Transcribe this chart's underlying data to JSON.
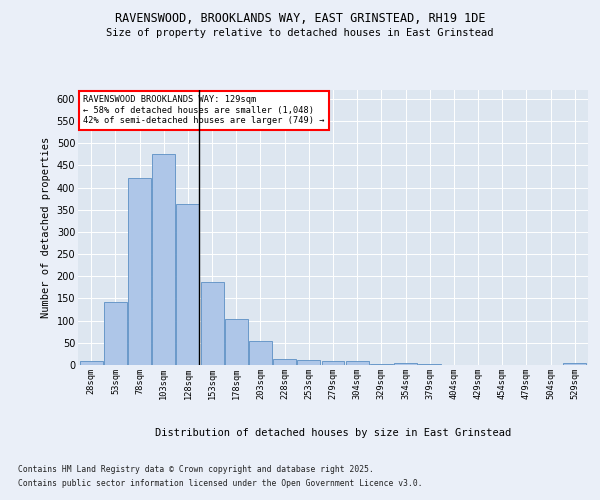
{
  "title1": "RAVENSWOOD, BROOKLANDS WAY, EAST GRINSTEAD, RH19 1DE",
  "title2": "Size of property relative to detached houses in East Grinstead",
  "xlabel": "Distribution of detached houses by size in East Grinstead",
  "ylabel": "Number of detached properties",
  "categories": [
    "28sqm",
    "53sqm",
    "78sqm",
    "103sqm",
    "128sqm",
    "153sqm",
    "178sqm",
    "203sqm",
    "228sqm",
    "253sqm",
    "279sqm",
    "304sqm",
    "329sqm",
    "354sqm",
    "379sqm",
    "404sqm",
    "429sqm",
    "454sqm",
    "479sqm",
    "504sqm",
    "529sqm"
  ],
  "values": [
    8,
    142,
    422,
    475,
    362,
    188,
    104,
    53,
    14,
    12,
    9,
    8,
    3,
    4,
    2,
    1,
    0,
    0,
    0,
    0,
    4
  ],
  "bar_color": "#aec6e8",
  "bar_edge_color": "#5b8fc4",
  "vline_index": 4,
  "annotation_title": "RAVENSWOOD BROOKLANDS WAY: 129sqm",
  "annotation_line1": "← 58% of detached houses are smaller (1,048)",
  "annotation_line2": "42% of semi-detached houses are larger (749) →",
  "vline_color": "#000000",
  "ylim": [
    0,
    620
  ],
  "yticks": [
    0,
    50,
    100,
    150,
    200,
    250,
    300,
    350,
    400,
    450,
    500,
    550,
    600
  ],
  "bg_color": "#dde6f0",
  "grid_color": "#ffffff",
  "fig_bg_color": "#eaeff8",
  "footer1": "Contains HM Land Registry data © Crown copyright and database right 2025.",
  "footer2": "Contains public sector information licensed under the Open Government Licence v3.0."
}
